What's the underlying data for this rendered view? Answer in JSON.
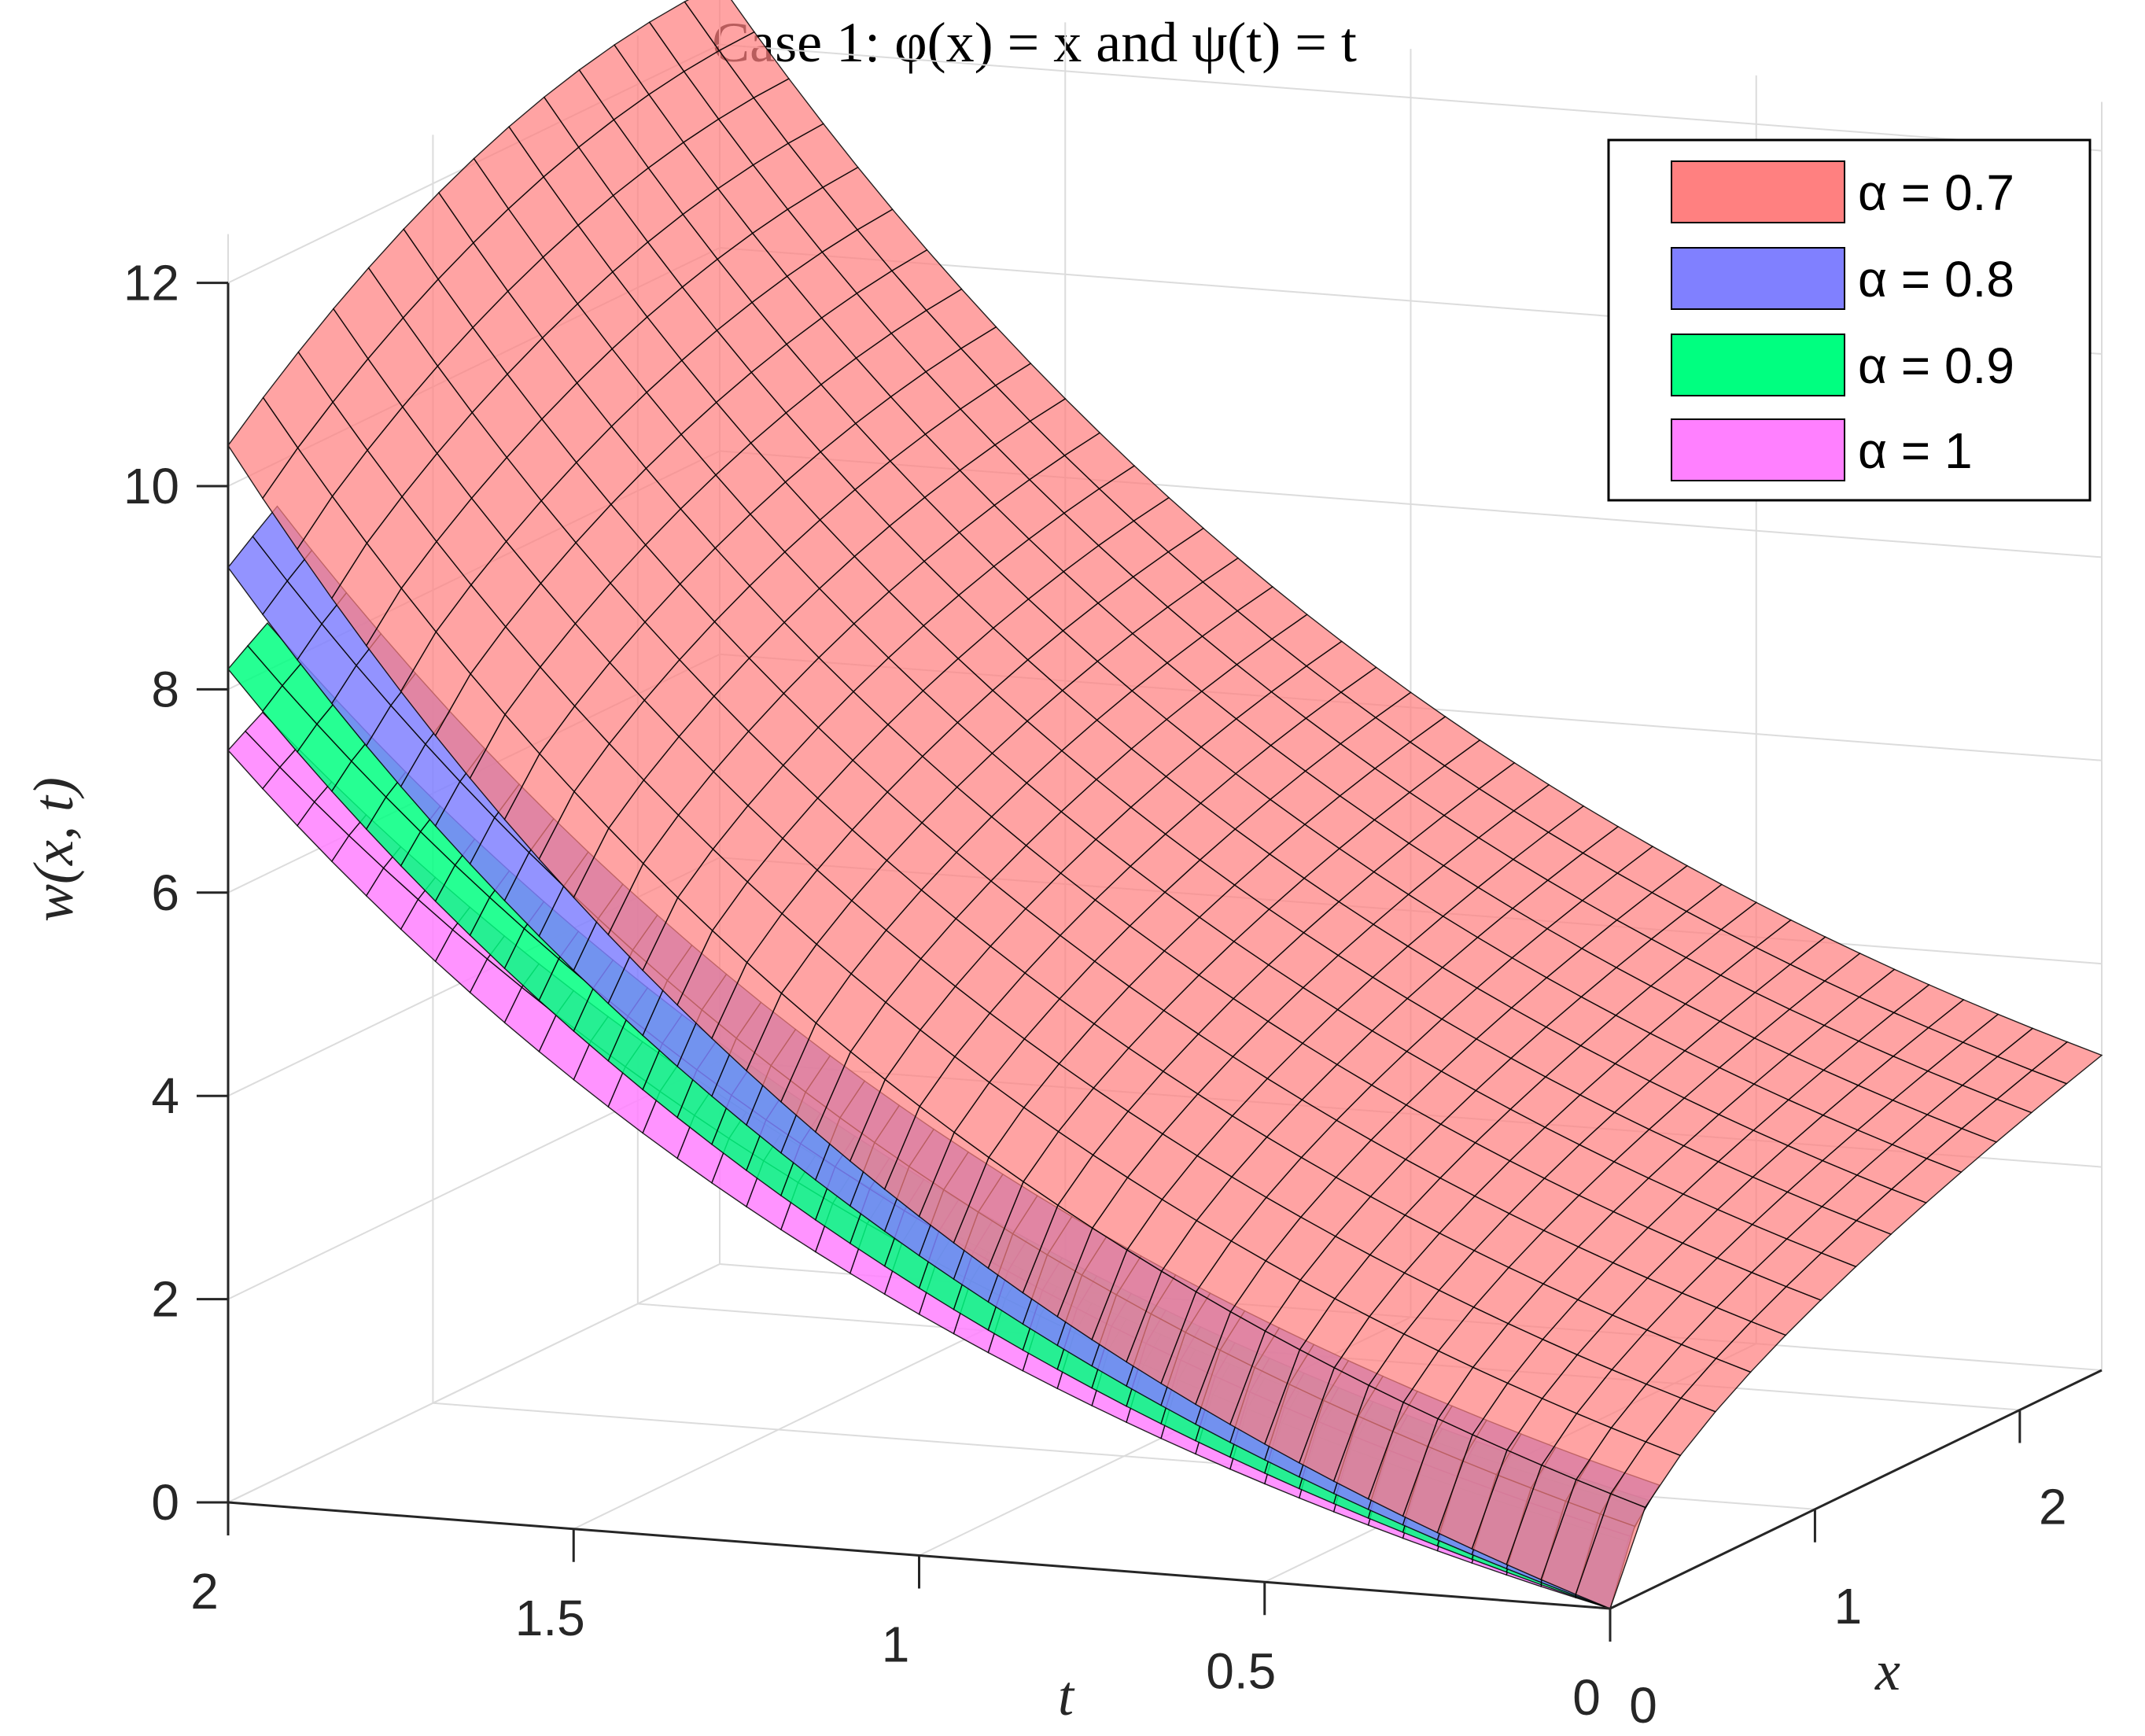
{
  "chart_data": {
    "type": "surface",
    "title": "Case 1: φ(x) = x and ψ(t) = t",
    "xlabel": "t",
    "ylabel": "x",
    "zlabel": "w(x, t)",
    "t_ticks": [
      "2",
      "1.5",
      "1",
      "0.5",
      "0"
    ],
    "x_ticks": [
      "0",
      "1",
      "2"
    ],
    "z_ticks": [
      "0",
      "2",
      "4",
      "6",
      "8",
      "10",
      "12"
    ],
    "t_range": [
      0,
      2
    ],
    "x_range": [
      0,
      2.4
    ],
    "z_range": [
      0,
      12
    ],
    "grid": true,
    "legend_position": "top-right",
    "series": [
      {
        "name": "α = 0.7",
        "color": "#ff8080",
        "z_at_t2_x0": 10.4,
        "z_at_t2_xmax": 12.6,
        "z_at_t0_x0": 0,
        "z_at_t0_xmax": 3.1
      },
      {
        "name": "α = 0.8",
        "color": "#8080ff",
        "z_at_t2_x0": 9.2,
        "z_at_t0_x0": 0
      },
      {
        "name": "α = 0.9",
        "color": "#00ff80",
        "z_at_t2_x0": 8.2,
        "z_at_t0_x0": 0
      },
      {
        "name": "α = 1",
        "color": "#ff80ff",
        "z_at_t2_x0": 7.4,
        "z_at_t0_x0": 0
      }
    ]
  }
}
